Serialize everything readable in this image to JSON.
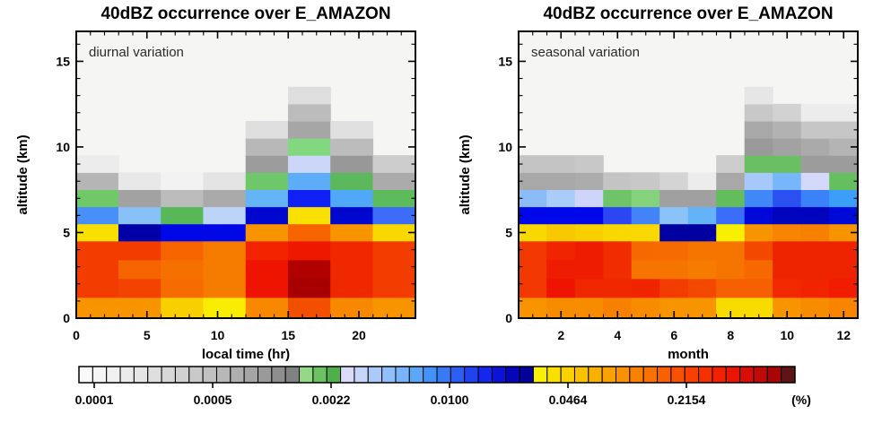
{
  "figure": {
    "left_title": "40dBZ occurrence over E_AMAZON",
    "right_title": "40dBZ occurrence over E_AMAZON"
  },
  "chart_data": [
    {
      "type": "heatmap",
      "title": "40dBZ occurrence over E_AMAZON",
      "annotation": "diurnal variation",
      "xlabel": "local time (hr)",
      "ylabel": "altitude (km)",
      "x_range": [
        0,
        24
      ],
      "y_range": [
        0,
        16.75
      ],
      "x_major_ticks": [
        0,
        5,
        10,
        15,
        20
      ],
      "x_tick_labels": [
        "0",
        "5",
        "10",
        "15",
        "20"
      ],
      "x_minor_step": 1,
      "y_major_ticks": [
        0,
        5,
        10,
        15
      ],
      "y_tick_labels": [
        "0",
        "5",
        "10",
        "15"
      ],
      "y_minor_step": 1,
      "col_edges_hr": [
        0,
        3,
        6,
        9,
        12,
        15,
        18,
        21,
        24
      ],
      "row_edges_km": [
        0,
        1.2,
        2.3,
        3.4,
        4.5,
        5.5,
        6.5,
        7.5,
        8.5,
        9.5,
        10.5,
        11.5,
        12.5,
        13.5
      ],
      "bg_color": "#f5f5f4",
      "cells_by_row_bottom_to_top": [
        [
          "#f89400",
          "#f89400",
          "#f8d000",
          "#f8ec00",
          "#f88800",
          "#f25000",
          "#f88800",
          "#f89400"
        ],
        [
          "#f23c00",
          "#f24400",
          "#f66c00",
          "#f67c00",
          "#ee1400",
          "#a80000",
          "#f02800",
          "#f23c00"
        ],
        [
          "#f23c00",
          "#f66400",
          "#f67000",
          "#f67c00",
          "#ee1400",
          "#b00000",
          "#f02800",
          "#f23c00"
        ],
        [
          "#f23c00",
          "#f23c00",
          "#f66400",
          "#f67c00",
          "#f22400",
          "#ee1800",
          "#f02800",
          "#f23c00"
        ],
        [
          "#f8e000",
          "#0000a8",
          "#0008e8",
          "#0008e8",
          "#f89400",
          "#f66400",
          "#f89400",
          "#f8d800"
        ],
        [
          "#4890f8",
          "#88c0f8",
          "#58b858",
          "#bcd4f8",
          "#0008d0",
          "#f8e000",
          "#0008d0",
          "#3c6cf8"
        ],
        [
          "#70c868",
          "#a2a2a2",
          "#bcbcbc",
          "#aaaaaa",
          "#64b4f8",
          "#1020f5",
          "#50a8f8",
          "#5cbc5c"
        ],
        [
          "#b5b5b5",
          "#e8e8e8",
          "#f2f2f2",
          "#e4e4e4",
          "#6ec86a",
          "#5cacf8",
          "#5cb85c",
          "#ababab"
        ],
        [
          "#ececec",
          null,
          null,
          null,
          "#9c9c9c",
          "#ccd6f8",
          "#989898",
          "#cccccc"
        ],
        [
          null,
          null,
          null,
          null,
          "#b8b8b8",
          "#82d87e",
          "#bcbcbc",
          null
        ],
        [
          null,
          null,
          null,
          null,
          "#dedede",
          "#a6a6a6",
          "#e0e0e0",
          null
        ],
        [
          null,
          null,
          null,
          null,
          null,
          "#bcbcbc",
          null,
          null
        ],
        [
          null,
          null,
          null,
          null,
          null,
          "#dedede",
          null,
          null
        ]
      ]
    },
    {
      "type": "heatmap",
      "title": "40dBZ occurrence over E_AMAZON",
      "annotation": "seasonal variation",
      "xlabel": "month",
      "ylabel": "altitude (km)",
      "x_range": [
        0.5,
        12.5
      ],
      "y_range": [
        0,
        16.75
      ],
      "x_major_ticks": [
        2,
        4,
        6,
        8,
        10,
        12
      ],
      "x_tick_labels": [
        "2",
        "4",
        "6",
        "8",
        "10",
        "12"
      ],
      "x_minor_step": 0.5,
      "y_major_ticks": [
        0,
        5,
        10,
        15
      ],
      "y_tick_labels": [
        "0",
        "5",
        "10",
        "15"
      ],
      "y_minor_step": 1,
      "col_edges_month": [
        0.5,
        1.5,
        2.5,
        3.5,
        4.5,
        5.5,
        6.5,
        7.5,
        8.5,
        9.5,
        10.5,
        11.5,
        12.5
      ],
      "row_edges_km": [
        0,
        1.2,
        2.3,
        3.4,
        4.5,
        5.5,
        6.5,
        7.5,
        8.5,
        9.5,
        10.5,
        11.5,
        12.5,
        13.5
      ],
      "bg_color": "#f5f5f4",
      "cells_by_row_bottom_to_top": [
        [
          "#f89400",
          "#f88c00",
          "#f88c00",
          "#f88000",
          "#f88c00",
          "#f89400",
          "#f89400",
          "#f8dc00",
          "#f8dc00",
          "#f89400",
          "#f88c00",
          "#f88400"
        ],
        [
          "#f23800",
          "#ee1400",
          "#f02800",
          "#f02800",
          "#f12400",
          "#f23c00",
          "#f24800",
          "#f66000",
          "#f66000",
          "#f22800",
          "#f22400",
          "#f21c00"
        ],
        [
          "#f23800",
          "#ee1c00",
          "#ee1c00",
          "#f02c00",
          "#f67400",
          "#f67400",
          "#f67c00",
          "#f67400",
          "#f66800",
          "#ee2400",
          "#ee2400",
          "#ee2400"
        ],
        [
          "#f23800",
          "#f02400",
          "#ee1c00",
          "#f02c00",
          "#f66800",
          "#f66c00",
          "#f67400",
          "#f67400",
          "#f24800",
          "#ee2400",
          "#ee2400",
          "#ee2400"
        ],
        [
          "#f8d800",
          "#f8c800",
          "#f8d000",
          "#f8d800",
          "#f8d800",
          "#0000a0",
          "#0000a0",
          "#f8f000",
          "#f89400",
          "#f88400",
          "#f88000",
          "#f89400"
        ],
        [
          "#0008ea",
          "#0008ea",
          "#0008ea",
          "#2b46f2",
          "#4284f8",
          "#8cc2fa",
          "#64b2f8",
          "#3b6ef8",
          "#0008d8",
          "#0004bc",
          "#0004bc",
          "#000ad8"
        ],
        [
          "#8cbcf8",
          "#aaccfa",
          "#ced4fa",
          "#70c468",
          "#84d27c",
          "#a0a0a0",
          "#a0a0a0",
          "#62bd5a",
          "#4088f8",
          "#2a50f2",
          "#3b82f8",
          "#3b9ef8"
        ],
        [
          "#a8a8a8",
          "#a8a8a8",
          "#acacac",
          "#c4c4c4",
          "#c8c8c8",
          "#d4d4d4",
          "#ececec",
          "#a8a8a8",
          "#a6c8fa",
          "#76b6fa",
          "#d4d8fa",
          "#66bf5e"
        ],
        [
          "#c4c4c4",
          "#c4c4c4",
          "#c8c8c8",
          null,
          null,
          null,
          null,
          "#cccccc",
          "#6abf62",
          "#6abf62",
          "#9c9c9c",
          "#9c9c9c"
        ],
        [
          null,
          null,
          null,
          null,
          null,
          null,
          null,
          null,
          "#9a9a9a",
          "#a2a2a2",
          "#aaaaaa",
          "#b4b4b4"
        ],
        [
          null,
          null,
          null,
          null,
          null,
          null,
          null,
          null,
          "#a8a8a8",
          "#b2b2b2",
          "#c6c6c6",
          "#c6c6c6"
        ],
        [
          null,
          null,
          null,
          null,
          null,
          null,
          null,
          null,
          "#c8c8c8",
          "#d2d2d2",
          "#ececec",
          "#ececec"
        ],
        [
          null,
          null,
          null,
          null,
          null,
          null,
          null,
          null,
          "#e6e6e6",
          null,
          null,
          null
        ]
      ]
    }
  ],
  "colorbar": {
    "orientation": "horizontal",
    "scale": "log",
    "tick_labels": [
      "0.0001",
      "0.0005",
      "0.0022",
      "0.0100",
      "0.0464",
      "0.2154"
    ],
    "unit": "(%)",
    "cell_colors": [
      "#fafafa",
      "#f5f5f5",
      "#f0f0f0",
      "#ebebeb",
      "#e5e5e5",
      "#dfdfdf",
      "#d8d8d8",
      "#d1d1d1",
      "#c9c9c9",
      "#c1c1c1",
      "#b8b8b8",
      "#afafaf",
      "#a5a5a5",
      "#9a9a9a",
      "#8e8e8e",
      "#818181",
      "#93d787",
      "#6cc263",
      "#4fb04a",
      "#dadaf9",
      "#c6d6fa",
      "#abcafa",
      "#91bffa",
      "#77b4f9",
      "#5ca8f8",
      "#4292f7",
      "#377af4",
      "#2b5ef2",
      "#2042ef",
      "#1427ec",
      "#0b13d8",
      "#0506b8",
      "#02029a",
      "#f9ef00",
      "#f9e000",
      "#f9d100",
      "#f9c100",
      "#f9b100",
      "#f9a100",
      "#f99100",
      "#f98100",
      "#f97100",
      "#f96100",
      "#f85100",
      "#f74100",
      "#f53100",
      "#f22100",
      "#e91505",
      "#d50f06",
      "#c00909",
      "#a80505",
      "#5e1414"
    ]
  }
}
